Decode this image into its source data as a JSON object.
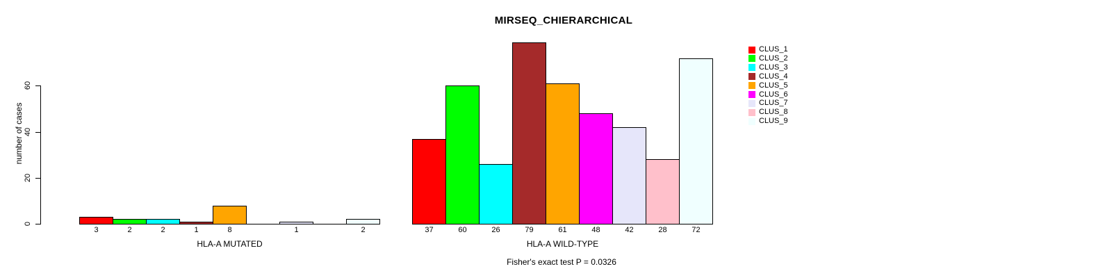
{
  "chart_data": {
    "type": "bar",
    "title": "MIRSEQ_CHIERARCHICAL",
    "ylabel": "number of cases",
    "xlabel": "",
    "yticks": [
      0,
      20,
      40,
      60
    ],
    "ylim": [
      0,
      79
    ],
    "grid": false,
    "legend_position": "right",
    "annotation": "Fisher's exact test P = 0.0326",
    "categories": [
      "CLUS_1",
      "CLUS_2",
      "CLUS_3",
      "CLUS_4",
      "CLUS_5",
      "CLUS_6",
      "CLUS_7",
      "CLUS_8",
      "CLUS_9"
    ],
    "groups": [
      {
        "label": "HLA-A MUTATED",
        "values": [
          3,
          2,
          2,
          1,
          8,
          0,
          1,
          0,
          2
        ]
      },
      {
        "label": "HLA-A WILD-TYPE",
        "values": [
          37,
          60,
          26,
          79,
          61,
          48,
          42,
          28,
          72
        ]
      }
    ],
    "legend": [
      {
        "label": "CLUS_1",
        "color": "#FF0000"
      },
      {
        "label": "CLUS_2",
        "color": "#00FF00"
      },
      {
        "label": "CLUS_3",
        "color": "#00FFFF"
      },
      {
        "label": "CLUS_4",
        "color": "#A52A2A"
      },
      {
        "label": "CLUS_5",
        "color": "#FFA500"
      },
      {
        "label": "CLUS_6",
        "color": "#FF00FF"
      },
      {
        "label": "CLUS_7",
        "color": "#E6E6FA"
      },
      {
        "label": "CLUS_8",
        "color": "#FFC0CB"
      },
      {
        "label": "CLUS_9",
        "color": "#F0FFFF"
      }
    ]
  }
}
